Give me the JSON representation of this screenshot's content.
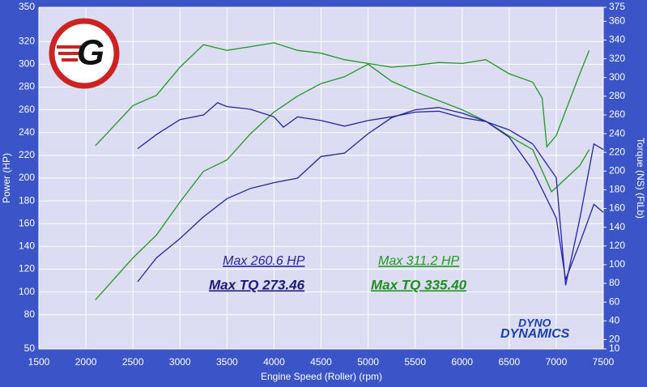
{
  "chart_data": {
    "type": "line",
    "x_label": "Engine Speed (Roller) (rpm)",
    "y_label": "Power (HP)",
    "y2_label": "Torque (NS) (FtLb)",
    "logo_text": "G",
    "brand_top": "DYNO",
    "brand_bottom": "DYNAMICS",
    "xlim": [
      1500,
      7500
    ],
    "xticks": [
      1500,
      2000,
      2500,
      3000,
      3500,
      4000,
      4500,
      5000,
      5500,
      6000,
      6500,
      7000,
      7500
    ],
    "ylim": [
      50,
      350
    ],
    "yticks": [
      50,
      80,
      100,
      120,
      140,
      160,
      180,
      200,
      220,
      240,
      260,
      280,
      300,
      320,
      350
    ],
    "y2lim": [
      10,
      375
    ],
    "y2ticks": [
      10,
      20,
      40,
      60,
      80,
      100,
      120,
      140,
      160,
      180,
      200,
      220,
      240,
      260,
      280,
      300,
      320,
      340,
      360,
      375
    ],
    "grid": true,
    "series": [
      {
        "color": "#229922",
        "axis": "y2",
        "x": [
          2100,
          2500,
          2750,
          3000,
          3250,
          3500,
          3750,
          4000,
          4250,
          4500,
          4750,
          5000,
          5250,
          5500,
          5750,
          6000,
          6250,
          6500,
          6750,
          6850,
          6900,
          7000,
          7250,
          7350
        ],
        "values": [
          227,
          270,
          281,
          311,
          335,
          329,
          333,
          337,
          329,
          326,
          319,
          315,
          311,
          313,
          316,
          315,
          319,
          304,
          295,
          278,
          226,
          238,
          304,
          329
        ]
      },
      {
        "color": "#229922",
        "x": [
          2100,
          2500,
          2750,
          3000,
          3250,
          3500,
          3750,
          4000,
          4250,
          4500,
          4750,
          5000,
          5250,
          5500,
          5750,
          6000,
          6250,
          6500,
          6750,
          6950,
          7250,
          7350
        ],
        "values": [
          93,
          130,
          150,
          179,
          206,
          216,
          239,
          258,
          272,
          283,
          289,
          300,
          285,
          276,
          268,
          260,
          250,
          237,
          225,
          188,
          211,
          225
        ]
      },
      {
        "color": "#2424a8",
        "axis": "y2",
        "x": [
          2550,
          2750,
          3000,
          3250,
          3400,
          3500,
          3750,
          4000,
          4100,
          4250,
          4500,
          4750,
          5000,
          5250,
          5500,
          5750,
          6000,
          6250,
          6500,
          6750,
          7000,
          7100,
          7250,
          7400,
          7500
        ],
        "values": [
          224,
          239,
          255,
          260,
          273,
          269,
          266,
          258,
          247,
          258,
          254,
          248,
          254,
          258,
          263,
          264,
          257,
          253,
          244,
          229,
          193,
          78,
          149,
          229,
          223
        ]
      },
      {
        "color": "#2424a8",
        "x": [
          2550,
          2750,
          3000,
          3250,
          3500,
          3750,
          4000,
          4250,
          4500,
          4750,
          5000,
          5250,
          5500,
          5750,
          6000,
          6250,
          6500,
          6750,
          7000,
          7100,
          7250,
          7400,
          7500
        ],
        "values": [
          109,
          130,
          147,
          166,
          182,
          191,
          196,
          200,
          219,
          222,
          239,
          253,
          260,
          262,
          257,
          250,
          236,
          207,
          165,
          111,
          143,
          177,
          170
        ]
      }
    ],
    "annotations": [
      {
        "text": "Max 260.6 HP",
        "color": "#2424a8"
      },
      {
        "text": "Max TQ 273.46",
        "color": "#1a1a80"
      },
      {
        "text": "Max 311.2 HP",
        "color": "#229922"
      },
      {
        "text": "Max TQ 335.40",
        "color": "#1f8f1f"
      }
    ]
  }
}
